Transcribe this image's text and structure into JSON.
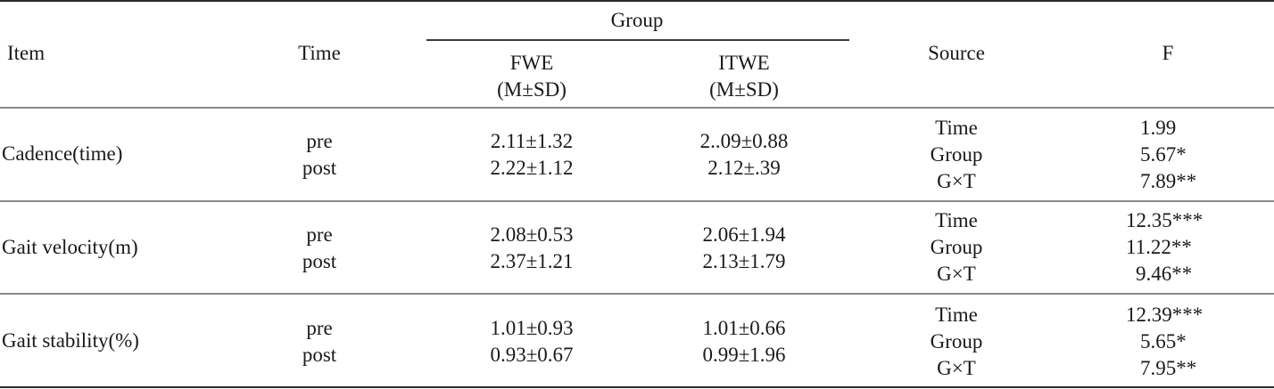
{
  "header": {
    "item": "Item",
    "time": "Time",
    "group": "Group",
    "fwe": "FWE",
    "fwe_stat": "(M±SD)",
    "itwe": "ITWE",
    "itwe_stat": "(M±SD)",
    "source": "Source",
    "f": "F"
  },
  "rows": [
    {
      "item": "Cadence(time)",
      "time": [
        "pre",
        "post"
      ],
      "fwe": [
        "2.11±1.32",
        "2.22±1.12"
      ],
      "itwe": [
        "2..09±0.88",
        "2.12±.39"
      ],
      "source": [
        "Time",
        "Group",
        "G×T"
      ],
      "f": [
        "1.99",
        "5.67*",
        "7.89**"
      ]
    },
    {
      "item": "Gait velocity(m)",
      "time": [
        "pre",
        "post"
      ],
      "fwe": [
        "2.08±0.53",
        "2.37±1.21"
      ],
      "itwe": [
        "2.06±1.94",
        "2.13±1.79"
      ],
      "source": [
        "Time",
        "Group",
        "G×T"
      ],
      "f": [
        "12.35***",
        "11.22**",
        "9.46**"
      ]
    },
    {
      "item": "Gait stability(%)",
      "time": [
        "pre",
        "post"
      ],
      "fwe": [
        "1.01±0.93",
        "0.93±0.67"
      ],
      "itwe": [
        "1.01±0.66",
        "0.99±1.96"
      ],
      "source": [
        "Time",
        "Group",
        "G×T"
      ],
      "f": [
        "12.39***",
        "5.65*",
        "7.95**"
      ]
    }
  ]
}
